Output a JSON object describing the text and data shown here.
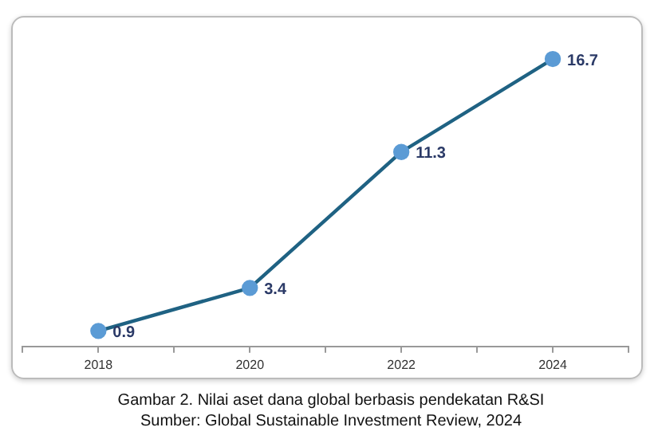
{
  "chart_data": {
    "type": "line",
    "x": [
      2018,
      2020,
      2022,
      2024
    ],
    "values": [
      0.9,
      3.4,
      11.3,
      16.7
    ],
    "color": "#1f6283",
    "colors": [
      "#5b9bd5",
      "#5b9bd5",
      "#5b9bd5",
      "#5b9bd5"
    ],
    "xlim": [
      2017,
      2025
    ],
    "xticks": [
      {
        "value": 2017,
        "label": null
      },
      2018,
      {
        "value": 2019,
        "label": null
      },
      2020,
      {
        "value": 2021,
        "label": null
      },
      2022,
      {
        "value": 2023,
        "label": null
      },
      2024,
      {
        "value": 2025,
        "label": null
      }
    ],
    "marker": "circle",
    "line_style": "solid",
    "data_labels": true,
    "tick_labels": "x",
    "annotations": [
      "Gambar 2. Nilai aset dana global berbasis pendekatan R&SI",
      "Sumber: Global Sustainable Investment Review, 2024"
    ]
  }
}
